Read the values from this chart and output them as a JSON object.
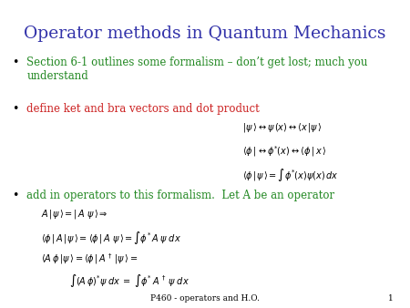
{
  "title": "Operator methods in Quantum Mechanics",
  "title_color": "#3333aa",
  "title_fontsize": 13.5,
  "bg_color": "#ffffff",
  "bullet_color": "#000000",
  "bullet1_text": "Section 6-1 outlines some formalism – don’t get lost; much you\nunderstand",
  "bullet1_color": "#228822",
  "bullet2_text": "define ket and bra vectors and dot product",
  "bullet2_color": "#cc2222",
  "bullet3_text": "add in operators to this formalism.  Let A be an operator",
  "bullet3_color": "#228822",
  "footer": "P460 - operators and H.O.",
  "footer_color": "#000000",
  "footer_fontsize": 6.5,
  "math_color": "#000000",
  "math_fs": 7.0,
  "eq_fs": 7.0,
  "text_fs": 8.5
}
